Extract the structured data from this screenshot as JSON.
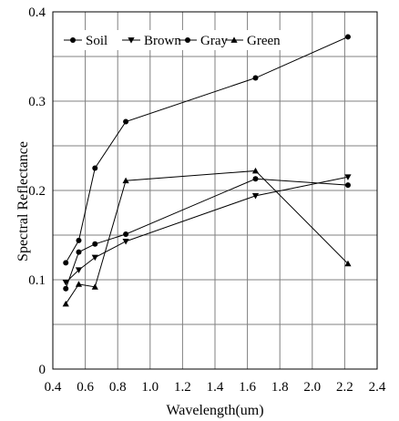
{
  "chart_data": {
    "type": "line",
    "xlabel": "Wavelength(um)",
    "ylabel": "Spectral Reflectance",
    "xlim": [
      0.4,
      2.4
    ],
    "ylim": [
      0,
      0.4
    ],
    "xticks": [
      "0.4",
      "0.6",
      "0.8",
      "1.0",
      "1.2",
      "1.4",
      "1.6",
      "1.8",
      "2.0",
      "2.2",
      "2.4"
    ],
    "yticks": [
      "0",
      "0.1",
      "0.2",
      "0.3",
      "0.4"
    ],
    "grid": true,
    "legend_position": "top",
    "series": [
      {
        "name": "Soil",
        "marker": "circle",
        "x": [
          0.48,
          0.56,
          0.66,
          0.85,
          1.65,
          2.22
        ],
        "y": [
          0.119,
          0.144,
          0.225,
          0.277,
          0.326,
          0.372
        ]
      },
      {
        "name": "Brown",
        "marker": "triangle-down",
        "x": [
          0.48,
          0.56,
          0.66,
          0.85,
          1.65,
          2.22
        ],
        "y": [
          0.097,
          0.111,
          0.125,
          0.143,
          0.194,
          0.215
        ]
      },
      {
        "name": "Gray",
        "marker": "circle",
        "x": [
          0.48,
          0.56,
          0.66,
          0.85,
          1.65,
          2.22
        ],
        "y": [
          0.09,
          0.131,
          0.14,
          0.151,
          0.213,
          0.206
        ]
      },
      {
        "name": "Green",
        "marker": "triangle-up",
        "x": [
          0.48,
          0.56,
          0.66,
          0.85,
          1.65,
          2.22
        ],
        "y": [
          0.073,
          0.095,
          0.092,
          0.211,
          0.222,
          0.118
        ]
      }
    ]
  }
}
